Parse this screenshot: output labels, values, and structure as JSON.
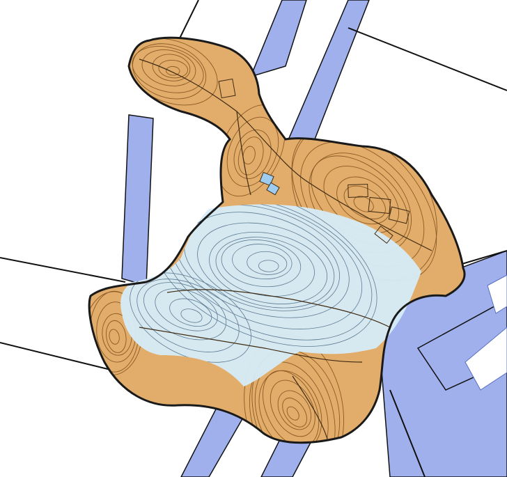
{
  "map": {
    "colors": {
      "background": "#ffffff",
      "corridor_fill": "#9fb0ec",
      "corridor_edge": "#111111",
      "island_fill": "#e2ad6a",
      "island_outline": "#1a1a1a",
      "contour": "#8a5a25",
      "highlight_fill": "#d6ecf8",
      "highlight_contour": "#5b7a92",
      "road": "#3e2a12"
    },
    "layers": [
      "flight-corridors",
      "island-terrain",
      "contour-lines",
      "highlight-zone",
      "roads-and-buildings"
    ]
  }
}
